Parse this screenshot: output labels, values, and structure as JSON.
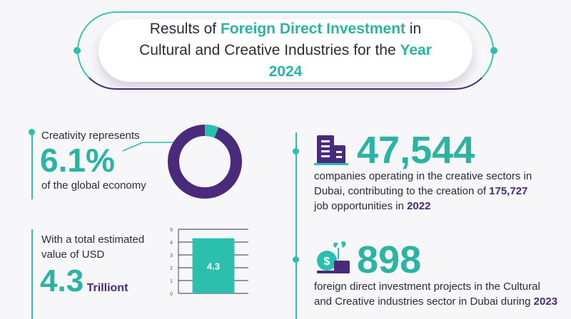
{
  "title": {
    "part1": "Results of ",
    "highlight1": "Foreign Direct Investment",
    "part2": " in Cultural and Creative Industries for the ",
    "highlight2": "Year 2024"
  },
  "stat_share": {
    "lead": "Creativity represents",
    "value": "6.1%",
    "sub": "of the global economy",
    "donut_fraction": 0.061,
    "colors": {
      "accent": "#2bbfae",
      "main": "#4a2a7a"
    }
  },
  "stat_value": {
    "lead_line1": "With a total estimated",
    "lead_line2": "value of USD",
    "value": "4.3",
    "unit": "Trilliont"
  },
  "chart_data": {
    "type": "bar",
    "categories": [
      ""
    ],
    "values": [
      4.3
    ],
    "data_labels": [
      "4.3"
    ],
    "ylim": [
      0,
      5
    ],
    "yticks": [
      "0",
      "1",
      "2",
      "3",
      "4",
      "5"
    ],
    "grid": true,
    "bar_color": "#2bbfae"
  },
  "stat_companies": {
    "icon": "buildings-icon",
    "value": "47,544",
    "text1": "companies operating in the creative sectors in",
    "text2a": "Dubai, contributing to the creation of ",
    "text2b": "175,727",
    "text3a": "job opportunities in ",
    "text3b": "2022"
  },
  "stat_projects": {
    "icon": "money-growth-icon",
    "value": "898",
    "text1": "foreign direct investment projects in the Cultural",
    "text2a": "and Creative industries sector in Dubai during ",
    "text2b": "2023"
  }
}
